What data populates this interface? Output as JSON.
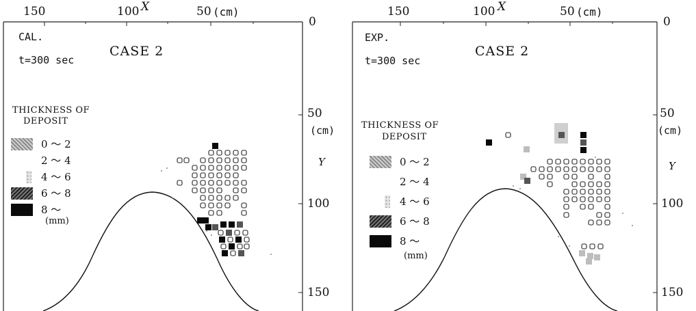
{
  "left": {
    "top_axis": {
      "ticks": [
        "150",
        "100",
        "50"
      ],
      "unit": "(cm)",
      "name": "X"
    },
    "right_axis": {
      "ticks": [
        "0",
        "50",
        "100",
        "150"
      ],
      "unit": "(cm)",
      "name": "Y"
    },
    "mode": "CAL.",
    "time": "t=300 sec",
    "case": "CASE 2",
    "legend": {
      "title_line1": "THICKNESS OF",
      "title_line2": "DEPOSIT",
      "items": [
        {
          "label": "0 ～ 2",
          "fill": "#b7b7b7"
        },
        {
          "label": "2 ～ 4",
          "fill": "#ffffff"
        },
        {
          "label": "4 ～ 6",
          "fill": "#e3e3e3"
        },
        {
          "label": "6 ～ 8",
          "fill": "#555555"
        },
        {
          "label": "8 ～",
          "fill": "#0a0a0a"
        }
      ],
      "unit": "(mm)"
    }
  },
  "right": {
    "top_axis": {
      "ticks": [
        "150",
        "100",
        "50"
      ],
      "unit": "(cm)",
      "name": "X"
    },
    "right_axis": {
      "ticks": [
        "0",
        "50",
        "100",
        "150"
      ],
      "unit": "(cm)",
      "name": "Y"
    },
    "mode": "EXP.",
    "time": "t=300 sec",
    "case": "CASE 2",
    "legend": {
      "title_line1": "THICKNESS OF",
      "title_line2": "DEPOSIT",
      "items": [
        {
          "label": "0 ～ 2",
          "fill": "#b7b7b7"
        },
        {
          "label": "2 ～ 4",
          "fill": "#ffffff"
        },
        {
          "label": "4 ～ 6",
          "fill": "#e3e3e3"
        },
        {
          "label": "6 ～ 8",
          "fill": "#555555"
        },
        {
          "label": "8 ～",
          "fill": "#0a0a0a"
        }
      ],
      "unit": "(mm)"
    }
  }
}
